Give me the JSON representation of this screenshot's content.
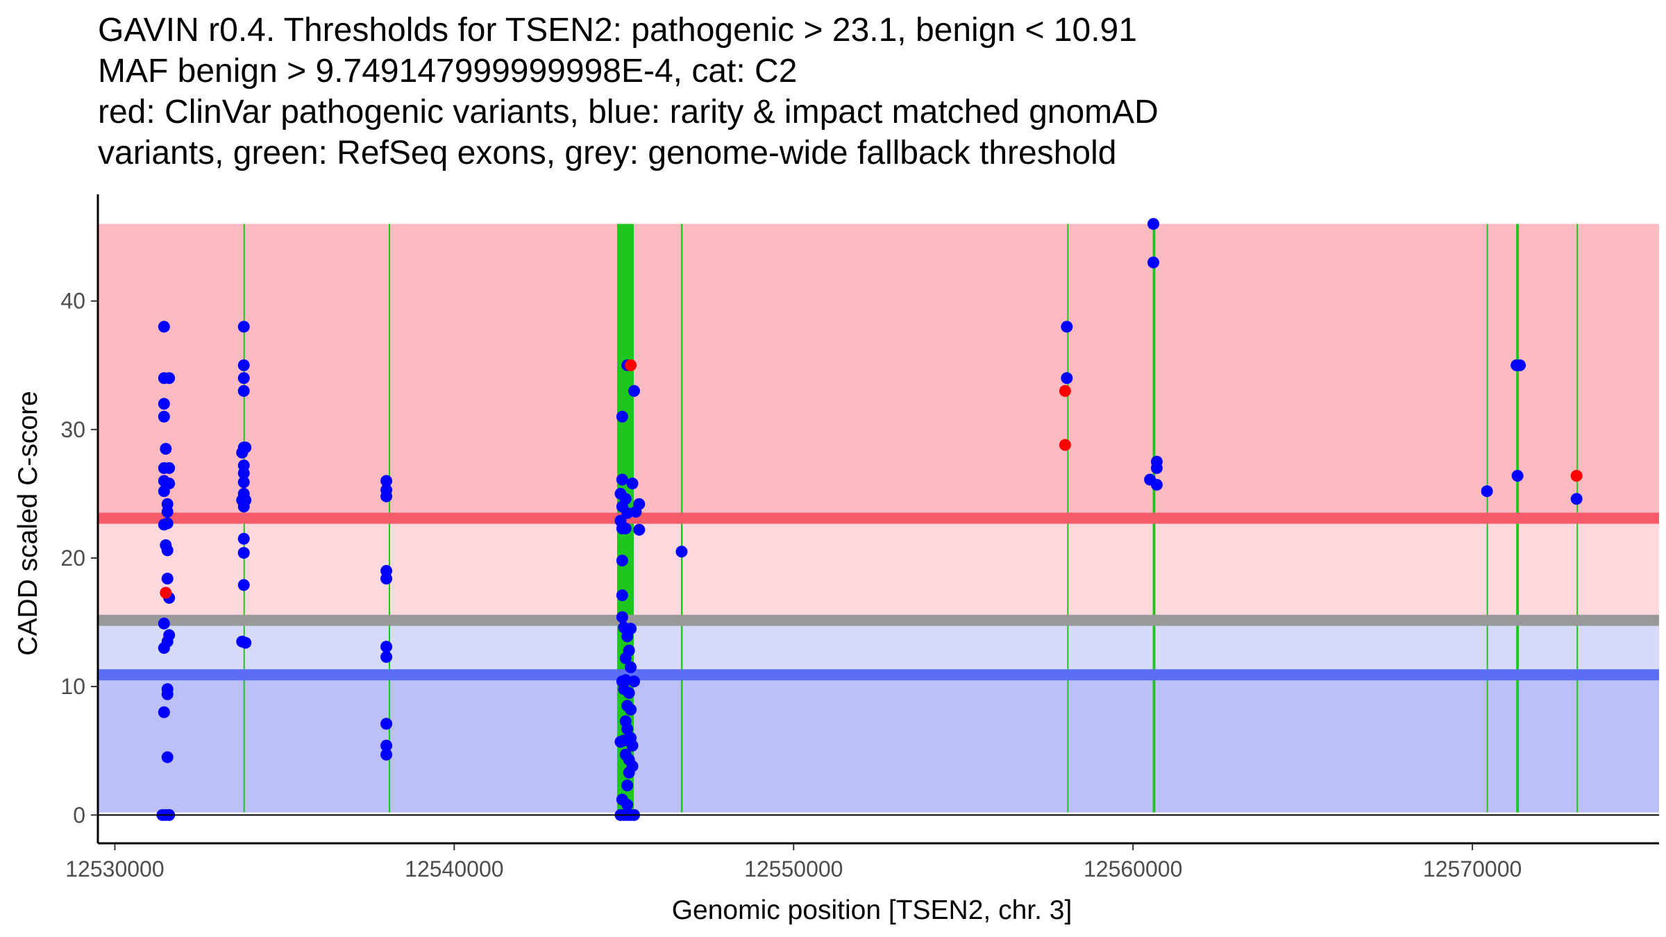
{
  "chart_data": {
    "type": "scatter",
    "title": [
      "GAVIN r0.4. Thresholds for TSEN2: pathogenic > 23.1, benign < 10.91",
      "MAF benign > 9.749147999999998E-4, cat: C2",
      "red: ClinVar pathogenic variants, blue: rarity & impact matched gnomAD",
      "variants, green: RefSeq exons, grey: genome-wide fallback threshold"
    ],
    "xlabel": "Genomic position [TSEN2, chr. 3]",
    "ylabel": "CADD scaled C-score",
    "xlim": [
      12529500,
      12575500
    ],
    "ylim": [
      -2.2,
      48.3
    ],
    "xticks": [
      12530000,
      12540000,
      12550000,
      12560000,
      12570000
    ],
    "xtick_labels": [
      "12530000",
      "12540000",
      "12550000",
      "12560000",
      "12570000"
    ],
    "yticks": [
      0,
      10,
      20,
      30,
      40
    ],
    "ytick_labels": [
      "0",
      "10",
      "20",
      "30",
      "40"
    ],
    "colors": {
      "pathogenic_zone": "#fcbbc0",
      "mid_zone": "#fdd8dc",
      "light_benign_zone": "#d7daf8",
      "benign_zone": "#bcc0f7",
      "pathogenic_line": "#f45b6b",
      "fallback_line": "#999999",
      "benign_line": "#5b6ef4",
      "exon": "#1dc71d",
      "gnomad": "#0000ff",
      "clinvar": "#ff0000"
    },
    "bands": [
      {
        "name": "pathogenic-zone",
        "y0": 23.1,
        "y1": 46.0,
        "color": "#fcbbc0"
      },
      {
        "name": "intermediate-zone",
        "y0": 15.15,
        "y1": 23.1,
        "color": "#fdd8dc"
      },
      {
        "name": "fallback-benign-zone",
        "y0": 10.91,
        "y1": 15.15,
        "color": "#d7daf8"
      },
      {
        "name": "benign-zone",
        "y0": 0.2,
        "y1": 10.91,
        "color": "#bcc0f7"
      }
    ],
    "threshold_lines": [
      {
        "name": "pathogenic-threshold-line",
        "y": 23.1,
        "color": "#f45b6b"
      },
      {
        "name": "fallback-threshold-line",
        "y": 15.15,
        "color": "#999999"
      },
      {
        "name": "benign-threshold-line",
        "y": 10.91,
        "color": "#5b6ef4"
      }
    ],
    "exons": [
      {
        "start": 12533790,
        "end": 12533830
      },
      {
        "start": 12538070,
        "end": 12538090
      },
      {
        "start": 12544800,
        "end": 12545290
      },
      {
        "start": 12546680,
        "end": 12546730
      },
      {
        "start": 12558060,
        "end": 12558080
      },
      {
        "start": 12560580,
        "end": 12560660
      },
      {
        "start": 12570420,
        "end": 12570440
      },
      {
        "start": 12571290,
        "end": 12571370
      },
      {
        "start": 12573070,
        "end": 12573110
      }
    ],
    "series": [
      {
        "name": "gnomAD variants",
        "color": "#0000ff",
        "points": [
          [
            12531450,
            38.0
          ],
          [
            12531450,
            34.0
          ],
          [
            12531600,
            34.0
          ],
          [
            12531450,
            32.0
          ],
          [
            12531450,
            31.0
          ],
          [
            12531500,
            28.5
          ],
          [
            12531450,
            27.0
          ],
          [
            12531600,
            27.0
          ],
          [
            12531450,
            26.0
          ],
          [
            12531600,
            25.8
          ],
          [
            12531450,
            25.2
          ],
          [
            12531550,
            24.2
          ],
          [
            12531550,
            23.6
          ],
          [
            12531450,
            22.6
          ],
          [
            12531550,
            22.7
          ],
          [
            12531500,
            21.0
          ],
          [
            12531550,
            20.6
          ],
          [
            12531550,
            18.4
          ],
          [
            12531600,
            16.9
          ],
          [
            12531450,
            14.9
          ],
          [
            12531600,
            14.0
          ],
          [
            12531550,
            13.5
          ],
          [
            12531450,
            13.0
          ],
          [
            12531550,
            9.8
          ],
          [
            12531550,
            9.4
          ],
          [
            12531450,
            8.0
          ],
          [
            12531550,
            4.5
          ],
          [
            12531400,
            0.0
          ],
          [
            12531500,
            0.0
          ],
          [
            12531600,
            0.0
          ],
          [
            12533800,
            38.0
          ],
          [
            12533800,
            35.0
          ],
          [
            12533800,
            34.0
          ],
          [
            12533800,
            33.0
          ],
          [
            12533800,
            28.6
          ],
          [
            12533750,
            28.2
          ],
          [
            12533850,
            28.6
          ],
          [
            12533800,
            27.2
          ],
          [
            12533800,
            26.6
          ],
          [
            12533800,
            25.9
          ],
          [
            12533800,
            25.0
          ],
          [
            12533750,
            24.5
          ],
          [
            12533850,
            24.5
          ],
          [
            12533800,
            24.0
          ],
          [
            12533800,
            21.5
          ],
          [
            12533800,
            20.4
          ],
          [
            12533800,
            17.9
          ],
          [
            12533750,
            13.5
          ],
          [
            12533850,
            13.4
          ],
          [
            12538000,
            26.0
          ],
          [
            12538000,
            25.3
          ],
          [
            12538000,
            24.8
          ],
          [
            12538000,
            19.0
          ],
          [
            12538000,
            18.4
          ],
          [
            12538000,
            13.1
          ],
          [
            12538000,
            12.3
          ],
          [
            12538000,
            7.1
          ],
          [
            12538000,
            5.4
          ],
          [
            12538000,
            4.7
          ],
          [
            12544950,
            31.0
          ],
          [
            12544950,
            26.1
          ],
          [
            12545250,
            25.8
          ],
          [
            12544900,
            25.0
          ],
          [
            12545050,
            24.6
          ],
          [
            12545450,
            24.2
          ],
          [
            12545350,
            23.6
          ],
          [
            12544950,
            24.0
          ],
          [
            12545100,
            23.5
          ],
          [
            12544900,
            22.9
          ],
          [
            12544950,
            22.3
          ],
          [
            12545050,
            22.3
          ],
          [
            12545450,
            22.2
          ],
          [
            12544950,
            19.8
          ],
          [
            12544950,
            17.1
          ],
          [
            12544950,
            15.4
          ],
          [
            12545000,
            14.6
          ],
          [
            12545200,
            14.5
          ],
          [
            12545100,
            13.9
          ],
          [
            12545150,
            12.8
          ],
          [
            12545050,
            12.2
          ],
          [
            12545200,
            11.5
          ],
          [
            12545050,
            10.5
          ],
          [
            12544950,
            10.4
          ],
          [
            12545300,
            10.4
          ],
          [
            12545000,
            9.8
          ],
          [
            12545150,
            9.5
          ],
          [
            12545100,
            8.5
          ],
          [
            12545200,
            8.2
          ],
          [
            12545050,
            7.3
          ],
          [
            12545100,
            6.7
          ],
          [
            12545200,
            6.0
          ],
          [
            12545000,
            5.8
          ],
          [
            12544900,
            5.7
          ],
          [
            12545250,
            5.4
          ],
          [
            12545050,
            4.7
          ],
          [
            12545150,
            4.3
          ],
          [
            12545250,
            3.8
          ],
          [
            12545150,
            3.3
          ],
          [
            12545100,
            2.3
          ],
          [
            12544950,
            1.2
          ],
          [
            12545100,
            0.8
          ],
          [
            12544900,
            0.0
          ],
          [
            12545000,
            0.0
          ],
          [
            12545100,
            0.0
          ],
          [
            12545200,
            0.0
          ],
          [
            12545300,
            0.0
          ],
          [
            12545100,
            35.0
          ],
          [
            12545300,
            33.0
          ],
          [
            12546700,
            20.5
          ],
          [
            12558050,
            38.0
          ],
          [
            12558050,
            34.0
          ],
          [
            12560600,
            46.0
          ],
          [
            12560600,
            43.0
          ],
          [
            12560700,
            27.5
          ],
          [
            12560700,
            27.0
          ],
          [
            12560500,
            26.1
          ],
          [
            12560700,
            25.7
          ],
          [
            12570430,
            25.2
          ],
          [
            12571300,
            35.0
          ],
          [
            12571400,
            35.0
          ],
          [
            12571330,
            26.4
          ],
          [
            12573070,
            24.6
          ]
        ]
      },
      {
        "name": "ClinVar pathogenic variants",
        "color": "#ff0000",
        "points": [
          [
            12531500,
            17.3
          ],
          [
            12545200,
            35.0
          ],
          [
            12558000,
            33.0
          ],
          [
            12558000,
            28.8
          ],
          [
            12573070,
            26.4
          ]
        ]
      }
    ]
  }
}
